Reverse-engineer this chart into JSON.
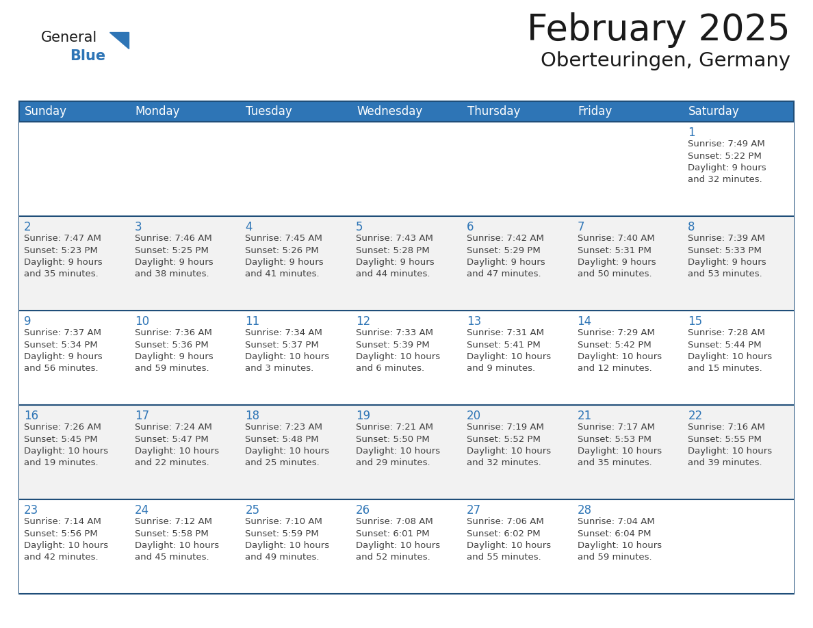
{
  "title": "February 2025",
  "subtitle": "Oberteuringen, Germany",
  "header_bg": "#2E75B6",
  "header_text_color": "#FFFFFF",
  "row_bg_white": "#FFFFFF",
  "row_bg_gray": "#F2F2F2",
  "border_color": "#1F4E79",
  "day_number_color": "#2E75B6",
  "info_color": "#404040",
  "days_of_week": [
    "Sunday",
    "Monday",
    "Tuesday",
    "Wednesday",
    "Thursday",
    "Friday",
    "Saturday"
  ],
  "weeks": [
    [
      {
        "day": null,
        "info": null
      },
      {
        "day": null,
        "info": null
      },
      {
        "day": null,
        "info": null
      },
      {
        "day": null,
        "info": null
      },
      {
        "day": null,
        "info": null
      },
      {
        "day": null,
        "info": null
      },
      {
        "day": 1,
        "info": "Sunrise: 7:49 AM\nSunset: 5:22 PM\nDaylight: 9 hours\nand 32 minutes."
      }
    ],
    [
      {
        "day": 2,
        "info": "Sunrise: 7:47 AM\nSunset: 5:23 PM\nDaylight: 9 hours\nand 35 minutes."
      },
      {
        "day": 3,
        "info": "Sunrise: 7:46 AM\nSunset: 5:25 PM\nDaylight: 9 hours\nand 38 minutes."
      },
      {
        "day": 4,
        "info": "Sunrise: 7:45 AM\nSunset: 5:26 PM\nDaylight: 9 hours\nand 41 minutes."
      },
      {
        "day": 5,
        "info": "Sunrise: 7:43 AM\nSunset: 5:28 PM\nDaylight: 9 hours\nand 44 minutes."
      },
      {
        "day": 6,
        "info": "Sunrise: 7:42 AM\nSunset: 5:29 PM\nDaylight: 9 hours\nand 47 minutes."
      },
      {
        "day": 7,
        "info": "Sunrise: 7:40 AM\nSunset: 5:31 PM\nDaylight: 9 hours\nand 50 minutes."
      },
      {
        "day": 8,
        "info": "Sunrise: 7:39 AM\nSunset: 5:33 PM\nDaylight: 9 hours\nand 53 minutes."
      }
    ],
    [
      {
        "day": 9,
        "info": "Sunrise: 7:37 AM\nSunset: 5:34 PM\nDaylight: 9 hours\nand 56 minutes."
      },
      {
        "day": 10,
        "info": "Sunrise: 7:36 AM\nSunset: 5:36 PM\nDaylight: 9 hours\nand 59 minutes."
      },
      {
        "day": 11,
        "info": "Sunrise: 7:34 AM\nSunset: 5:37 PM\nDaylight: 10 hours\nand 3 minutes."
      },
      {
        "day": 12,
        "info": "Sunrise: 7:33 AM\nSunset: 5:39 PM\nDaylight: 10 hours\nand 6 minutes."
      },
      {
        "day": 13,
        "info": "Sunrise: 7:31 AM\nSunset: 5:41 PM\nDaylight: 10 hours\nand 9 minutes."
      },
      {
        "day": 14,
        "info": "Sunrise: 7:29 AM\nSunset: 5:42 PM\nDaylight: 10 hours\nand 12 minutes."
      },
      {
        "day": 15,
        "info": "Sunrise: 7:28 AM\nSunset: 5:44 PM\nDaylight: 10 hours\nand 15 minutes."
      }
    ],
    [
      {
        "day": 16,
        "info": "Sunrise: 7:26 AM\nSunset: 5:45 PM\nDaylight: 10 hours\nand 19 minutes."
      },
      {
        "day": 17,
        "info": "Sunrise: 7:24 AM\nSunset: 5:47 PM\nDaylight: 10 hours\nand 22 minutes."
      },
      {
        "day": 18,
        "info": "Sunrise: 7:23 AM\nSunset: 5:48 PM\nDaylight: 10 hours\nand 25 minutes."
      },
      {
        "day": 19,
        "info": "Sunrise: 7:21 AM\nSunset: 5:50 PM\nDaylight: 10 hours\nand 29 minutes."
      },
      {
        "day": 20,
        "info": "Sunrise: 7:19 AM\nSunset: 5:52 PM\nDaylight: 10 hours\nand 32 minutes."
      },
      {
        "day": 21,
        "info": "Sunrise: 7:17 AM\nSunset: 5:53 PM\nDaylight: 10 hours\nand 35 minutes."
      },
      {
        "day": 22,
        "info": "Sunrise: 7:16 AM\nSunset: 5:55 PM\nDaylight: 10 hours\nand 39 minutes."
      }
    ],
    [
      {
        "day": 23,
        "info": "Sunrise: 7:14 AM\nSunset: 5:56 PM\nDaylight: 10 hours\nand 42 minutes."
      },
      {
        "day": 24,
        "info": "Sunrise: 7:12 AM\nSunset: 5:58 PM\nDaylight: 10 hours\nand 45 minutes."
      },
      {
        "day": 25,
        "info": "Sunrise: 7:10 AM\nSunset: 5:59 PM\nDaylight: 10 hours\nand 49 minutes."
      },
      {
        "day": 26,
        "info": "Sunrise: 7:08 AM\nSunset: 6:01 PM\nDaylight: 10 hours\nand 52 minutes."
      },
      {
        "day": 27,
        "info": "Sunrise: 7:06 AM\nSunset: 6:02 PM\nDaylight: 10 hours\nand 55 minutes."
      },
      {
        "day": 28,
        "info": "Sunrise: 7:04 AM\nSunset: 6:04 PM\nDaylight: 10 hours\nand 59 minutes."
      },
      {
        "day": null,
        "info": null
      }
    ]
  ],
  "logo_general_color": "#1a1a1a",
  "logo_blue_color": "#2E75B6",
  "title_fontsize": 38,
  "subtitle_fontsize": 21,
  "header_fontsize": 12,
  "day_number_fontsize": 12,
  "info_fontsize": 9.5
}
